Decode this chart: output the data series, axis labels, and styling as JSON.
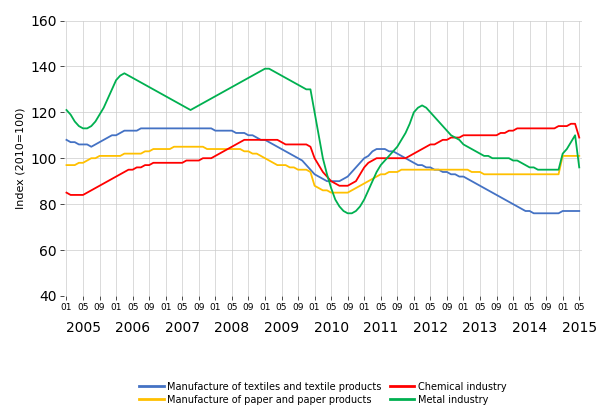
{
  "title": "",
  "ylabel": "Index (2010=100)",
  "ylim": [
    40,
    160
  ],
  "yticks": [
    40,
    60,
    80,
    100,
    120,
    140,
    160
  ],
  "colors": {
    "textiles": "#4472C4",
    "paper": "#FFC000",
    "chemical": "#FF0000",
    "metal": "#00B050"
  },
  "legend_labels": [
    "Manufacture of textiles and textile products",
    "Manufacture of paper and paper products",
    "Chemical industry",
    "Metal industry"
  ],
  "textiles": [
    108,
    107,
    107,
    106,
    106,
    106,
    105,
    106,
    107,
    108,
    109,
    110,
    110,
    111,
    112,
    112,
    112,
    112,
    113,
    113,
    113,
    113,
    113,
    113,
    113,
    113,
    113,
    113,
    113,
    113,
    113,
    113,
    113,
    113,
    113,
    113,
    112,
    112,
    112,
    112,
    112,
    111,
    111,
    111,
    110,
    110,
    109,
    108,
    108,
    107,
    106,
    105,
    104,
    103,
    102,
    101,
    100,
    99,
    97,
    95,
    93,
    92,
    91,
    90,
    90,
    90,
    90,
    91,
    92,
    94,
    96,
    98,
    100,
    101,
    103,
    104,
    104,
    104,
    103,
    103,
    102,
    101,
    100,
    99,
    98,
    97,
    97,
    96,
    96,
    95,
    95,
    94,
    94,
    93,
    93,
    92,
    92,
    91,
    90,
    89,
    88,
    87,
    86,
    85,
    84,
    83,
    82,
    81,
    80,
    79,
    78,
    77,
    77,
    76,
    76,
    76,
    76,
    76,
    76,
    76,
    77,
    77,
    77,
    77,
    77
  ],
  "paper": [
    97,
    97,
    97,
    98,
    98,
    99,
    100,
    100,
    101,
    101,
    101,
    101,
    101,
    101,
    102,
    102,
    102,
    102,
    102,
    103,
    103,
    104,
    104,
    104,
    104,
    104,
    105,
    105,
    105,
    105,
    105,
    105,
    105,
    105,
    104,
    104,
    104,
    104,
    104,
    104,
    104,
    104,
    104,
    103,
    103,
    102,
    102,
    101,
    100,
    99,
    98,
    97,
    97,
    97,
    96,
    96,
    95,
    95,
    95,
    94,
    88,
    87,
    86,
    86,
    85,
    85,
    85,
    85,
    85,
    86,
    87,
    88,
    89,
    90,
    91,
    92,
    93,
    93,
    94,
    94,
    94,
    95,
    95,
    95,
    95,
    95,
    95,
    95,
    95,
    95,
    95,
    95,
    95,
    95,
    95,
    95,
    95,
    95,
    94,
    94,
    94,
    93,
    93,
    93,
    93,
    93,
    93,
    93,
    93,
    93,
    93,
    93,
    93,
    93,
    93,
    93,
    93,
    93,
    93,
    93,
    101,
    101,
    101,
    101,
    101
  ],
  "chemical": [
    85,
    84,
    84,
    84,
    84,
    85,
    86,
    87,
    88,
    89,
    90,
    91,
    92,
    93,
    94,
    95,
    95,
    96,
    96,
    97,
    97,
    98,
    98,
    98,
    98,
    98,
    98,
    98,
    98,
    99,
    99,
    99,
    99,
    100,
    100,
    100,
    101,
    102,
    103,
    104,
    105,
    106,
    107,
    108,
    108,
    108,
    108,
    108,
    108,
    108,
    108,
    108,
    107,
    106,
    106,
    106,
    106,
    106,
    106,
    105,
    100,
    97,
    94,
    92,
    90,
    89,
    88,
    88,
    88,
    89,
    90,
    93,
    96,
    98,
    99,
    100,
    100,
    100,
    100,
    100,
    100,
    100,
    100,
    101,
    102,
    103,
    104,
    105,
    106,
    106,
    107,
    108,
    108,
    109,
    109,
    109,
    110,
    110,
    110,
    110,
    110,
    110,
    110,
    110,
    110,
    111,
    111,
    112,
    112,
    113,
    113,
    113,
    113,
    113,
    113,
    113,
    113,
    113,
    113,
    114,
    114,
    114,
    115,
    115,
    109
  ],
  "metal": [
    121,
    119,
    116,
    114,
    113,
    113,
    114,
    116,
    119,
    122,
    126,
    130,
    134,
    136,
    137,
    136,
    135,
    134,
    133,
    132,
    131,
    130,
    129,
    128,
    127,
    126,
    125,
    124,
    123,
    122,
    121,
    122,
    123,
    124,
    125,
    126,
    127,
    128,
    129,
    130,
    131,
    132,
    133,
    134,
    135,
    136,
    137,
    138,
    139,
    139,
    138,
    137,
    136,
    135,
    134,
    133,
    132,
    131,
    130,
    130,
    120,
    110,
    100,
    93,
    87,
    82,
    79,
    77,
    76,
    76,
    77,
    79,
    82,
    86,
    90,
    94,
    97,
    99,
    101,
    103,
    105,
    108,
    111,
    115,
    120,
    122,
    123,
    122,
    120,
    118,
    116,
    114,
    112,
    110,
    109,
    108,
    106,
    105,
    104,
    103,
    102,
    101,
    101,
    100,
    100,
    100,
    100,
    100,
    99,
    99,
    98,
    97,
    96,
    96,
    95,
    95,
    95,
    95,
    95,
    95,
    102,
    104,
    107,
    110,
    96
  ]
}
